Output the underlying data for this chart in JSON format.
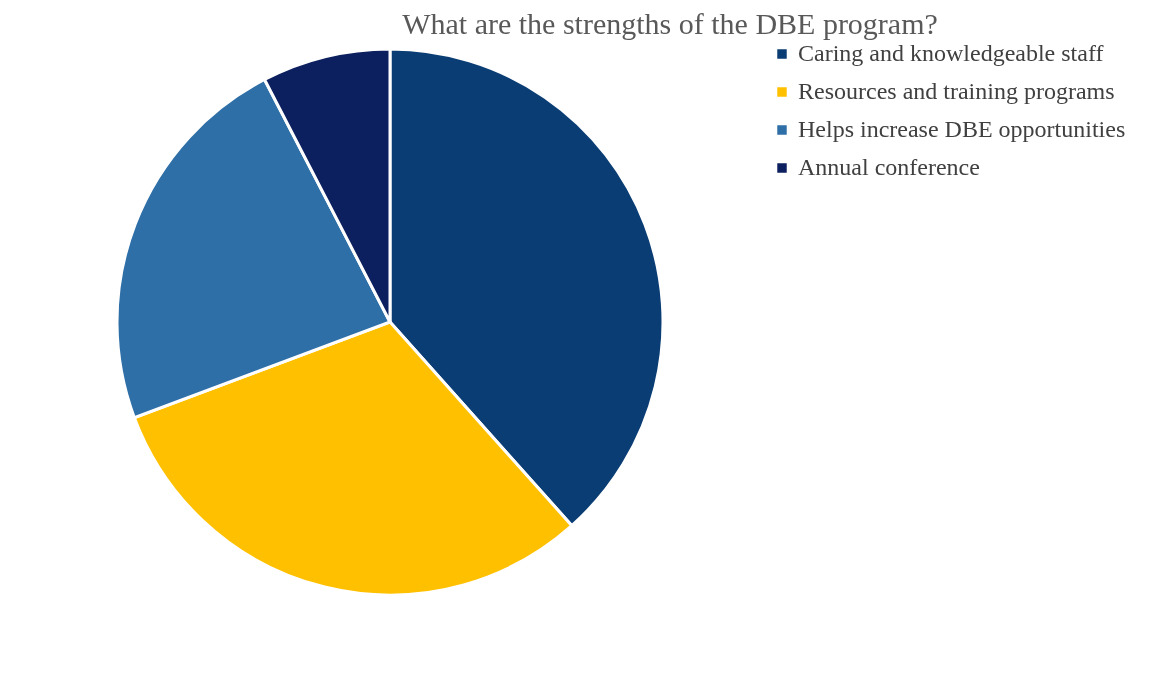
{
  "chart_data": {
    "type": "pie",
    "title": "What are the strengths of the DBE program?",
    "categories": [
      "Caring and knowledgeable staff",
      "Resources and training programs",
      "Helps increase DBE opportunities",
      "Annual conference"
    ],
    "values": [
      38.4,
      30.9,
      23.1,
      7.6
    ],
    "colors": [
      "#0a3d74",
      "#ffc000",
      "#2e6fa7",
      "#0c1f5e"
    ],
    "legend": "right"
  }
}
